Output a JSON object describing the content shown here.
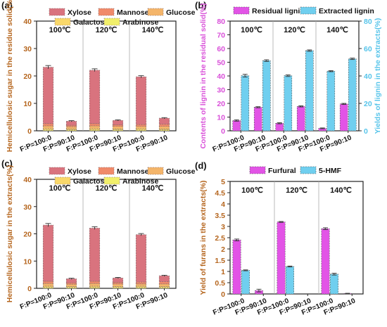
{
  "figure": {
    "colors": {
      "xylose": "#d9737e",
      "mannose": "#f08a6a",
      "glucose": "#f4b56a",
      "galactose": "#f9d86a",
      "arabinose": "#f1ef6a",
      "residual_lignin": "#e254e6",
      "extracted_lignin": "#70cfef",
      "furfural": "#e254e6",
      "hmf": "#70cfef",
      "magenta_axis": "#d94fd9",
      "cyan_axis": "#56c4ea"
    }
  },
  "chart_data": [
    {
      "panel": "(a)",
      "type": "bar",
      "stacked": true,
      "ylabel": "Hemicellulosic sugar in the residue solid(%",
      "ylim": [
        0,
        40
      ],
      "yticks": [
        "0",
        "10",
        "20",
        "30",
        "40"
      ],
      "groups": [
        "100℃",
        "120℃",
        "140℃"
      ],
      "categories": [
        "F:P=100:0",
        "F:P=90:10",
        "F:P=100:0",
        "F:P=90:10",
        "F:P=100:0",
        "F:P=90:10"
      ],
      "legend": [
        "Xylose",
        "Mannose",
        "Glucose",
        "Galactose",
        "Arabinose"
      ],
      "series": [
        {
          "name": "Arabinose",
          "values": [
            0.3,
            0.3,
            0.3,
            0.3,
            0.3,
            0.3
          ]
        },
        {
          "name": "Galactose",
          "values": [
            0.5,
            0.4,
            0.5,
            0.4,
            0.5,
            0.4
          ]
        },
        {
          "name": "Glucose",
          "values": [
            1.0,
            0.8,
            1.0,
            0.9,
            0.8,
            0.9
          ]
        },
        {
          "name": "Mannose",
          "values": [
            0.8,
            0.5,
            0.8,
            0.6,
            0.7,
            0.8
          ]
        },
        {
          "name": "Xylose",
          "values": [
            20.6,
            1.5,
            19.5,
            1.6,
            17.4,
            2.2
          ]
        }
      ],
      "errors": [
        0.6,
        0.2,
        0.5,
        0.2,
        0.4,
        0.2
      ]
    },
    {
      "panel": "(b)",
      "type": "bar",
      "ylabel": "Contents of lignin in the residual solid(%)",
      "y2label": "Yields of lignin in the extracts(%)",
      "ylim": [
        0,
        80
      ],
      "yticks": [
        "0",
        "10",
        "20",
        "30",
        "40",
        "50",
        "60",
        "70",
        "80"
      ],
      "y2ticks": [
        "0",
        "20",
        "40",
        "60",
        "80"
      ],
      "groups": [
        "100℃",
        "120℃",
        "140℃"
      ],
      "categories": [
        "F:P=100:0",
        "F:P=90:10",
        "F:P=100:0",
        "F:P=90:10",
        "F:P=100:0",
        "F:P=90:10"
      ],
      "series": [
        {
          "name": "Residual lignin",
          "values": [
            7.5,
            17.2,
            5.5,
            17.8,
            1.8,
            19.6
          ]
        },
        {
          "name": "Extracted lignin",
          "values": [
            40.2,
            51.2,
            40.2,
            58.5,
            43.5,
            52.5
          ]
        }
      ],
      "errors": [
        [
          0.5,
          0.4,
          0.4,
          0.4,
          0.3,
          0.4
        ],
        [
          1.0,
          0.6,
          0.6,
          0.5,
          0.4,
          0.5
        ]
      ]
    },
    {
      "panel": "(c)",
      "type": "bar",
      "stacked": true,
      "ylabel": "Hemicellulosic sugar in the extracts(%)",
      "ylim": [
        0,
        40
      ],
      "yticks": [
        "0",
        "10",
        "20",
        "30",
        "40"
      ],
      "groups": [
        "100℃",
        "120℃",
        "140℃"
      ],
      "categories": [
        "F:P=100:0",
        "F:P=90:10",
        "F:P=100:0",
        "F:P=90:10",
        "F:P=100:0",
        "F:P=90:10"
      ],
      "legend": [
        "Xylose",
        "Mannose",
        "Glucose",
        "Galactose",
        "Arabinose"
      ],
      "series": [
        {
          "name": "Arabinose",
          "values": [
            0.3,
            0.3,
            0.3,
            0.3,
            0.3,
            0.3
          ]
        },
        {
          "name": "Galactose",
          "values": [
            0.5,
            0.4,
            0.5,
            0.4,
            0.5,
            0.4
          ]
        },
        {
          "name": "Glucose",
          "values": [
            1.0,
            0.8,
            1.0,
            0.9,
            0.8,
            0.9
          ]
        },
        {
          "name": "Mannose",
          "values": [
            0.8,
            0.5,
            0.8,
            0.6,
            0.7,
            0.8
          ]
        },
        {
          "name": "Xylose",
          "values": [
            20.6,
            1.5,
            19.5,
            1.6,
            17.4,
            2.2
          ]
        }
      ],
      "errors": [
        0.6,
        0.2,
        0.5,
        0.2,
        0.4,
        0.2
      ]
    },
    {
      "panel": "(d)",
      "type": "bar",
      "ylabel": "Yield of furans in the extracts(%)",
      "ylim": [
        0,
        5
      ],
      "yticks": [
        "0",
        "0.5",
        "1",
        "1.5",
        "2",
        "2.5",
        "3",
        "3.5",
        "4",
        "4.5",
        "5"
      ],
      "groups": [
        "100℃",
        "120℃",
        "140℃"
      ],
      "categories": [
        "F:P=100:0",
        "F:P=90:10",
        "F:P=100:0",
        "F:P=90:10",
        "F:P=100:0",
        "F:P=90:10"
      ],
      "series": [
        {
          "name": "Furfural",
          "values": [
            2.4,
            0.15,
            3.2,
            0,
            2.9,
            0.02
          ]
        },
        {
          "name": "5-HMF",
          "values": [
            1.05,
            0,
            1.22,
            0,
            0.88,
            0
          ]
        }
      ],
      "errors": [
        [
          0.04,
          0.06,
          0.02,
          0,
          0.04,
          0.01
        ],
        [
          0.02,
          0,
          0.02,
          0,
          0.04,
          0
        ]
      ]
    }
  ]
}
